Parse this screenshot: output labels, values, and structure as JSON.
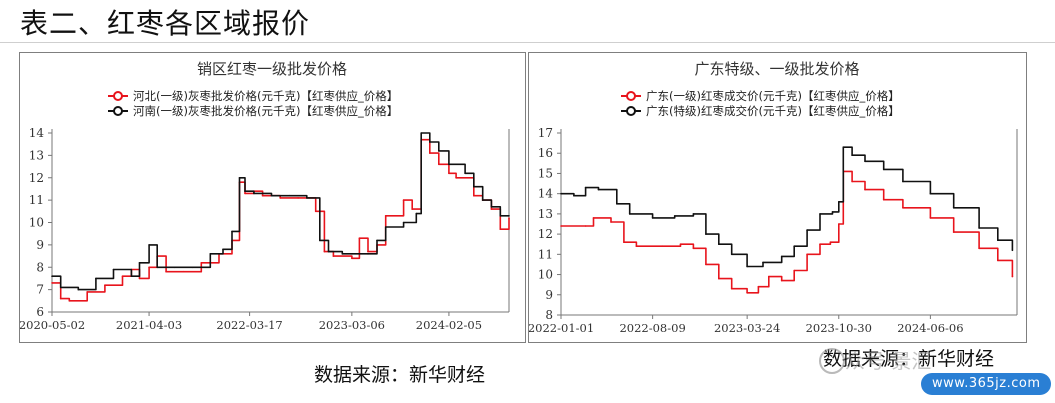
{
  "page": {
    "title": "表二、红枣各区域报价",
    "source_left": "数据来源：新华财经",
    "source_right": "数据来源：新华财经",
    "watermark_text": "众号·景汇",
    "watermark_site": "www.365jz.com"
  },
  "chart_data": [
    {
      "type": "line",
      "title": "销区红枣一级批发价格",
      "ylim": [
        6,
        14
      ],
      "yticks": [
        6,
        7,
        8,
        9,
        10,
        11,
        12,
        13,
        14
      ],
      "x_start": "2020-05-02",
      "x_end": "2024-08-31",
      "xtick_labels": [
        "2020-05-02",
        "2021-04-03",
        "2022-03-17",
        "2023-03-06",
        "2024-02-05"
      ],
      "grid": false,
      "legend_position": "top",
      "series": [
        {
          "name": "河北(一级)灰枣批发价格(元千克)【红枣供应_价格】",
          "color": "#e8141c",
          "points": [
            [
              "2020-05-02",
              7.3
            ],
            [
              "2020-06-01",
              6.6
            ],
            [
              "2020-07-01",
              6.5
            ],
            [
              "2020-09-01",
              6.9
            ],
            [
              "2020-11-01",
              7.2
            ],
            [
              "2021-01-01",
              7.6
            ],
            [
              "2021-02-01",
              7.9
            ],
            [
              "2021-03-01",
              7.5
            ],
            [
              "2021-04-03",
              8.0
            ],
            [
              "2021-05-01",
              8.5
            ],
            [
              "2021-06-01",
              7.8
            ],
            [
              "2021-08-01",
              7.8
            ],
            [
              "2021-10-01",
              8.2
            ],
            [
              "2021-12-01",
              8.6
            ],
            [
              "2022-01-15",
              9.2
            ],
            [
              "2022-02-10",
              11.8
            ],
            [
              "2022-03-01",
              11.3
            ],
            [
              "2022-04-01",
              11.4
            ],
            [
              "2022-05-01",
              11.2
            ],
            [
              "2022-07-01",
              11.1
            ],
            [
              "2022-09-01",
              11.1
            ],
            [
              "2022-11-01",
              10.5
            ],
            [
              "2022-12-01",
              8.7
            ],
            [
              "2023-01-01",
              8.5
            ],
            [
              "2023-03-06",
              8.4
            ],
            [
              "2023-04-01",
              9.3
            ],
            [
              "2023-05-01",
              8.7
            ],
            [
              "2023-06-01",
              9.0
            ],
            [
              "2023-07-01",
              10.3
            ],
            [
              "2023-09-01",
              11.0
            ],
            [
              "2023-10-01",
              10.6
            ],
            [
              "2023-11-01",
              13.7
            ],
            [
              "2023-12-01",
              13.1
            ],
            [
              "2024-01-01",
              12.6
            ],
            [
              "2024-02-05",
              12.2
            ],
            [
              "2024-03-01",
              12.0
            ],
            [
              "2024-05-01",
              11.2
            ],
            [
              "2024-06-01",
              11.0
            ],
            [
              "2024-07-01",
              10.6
            ],
            [
              "2024-08-01",
              9.7
            ],
            [
              "2024-08-31",
              10.2
            ]
          ]
        },
        {
          "name": "河南(一级)灰枣批发价格(元千克)【红枣供应_价格】",
          "color": "#111111",
          "points": [
            [
              "2020-05-02",
              7.6
            ],
            [
              "2020-06-01",
              7.1
            ],
            [
              "2020-08-01",
              7.0
            ],
            [
              "2020-10-01",
              7.5
            ],
            [
              "2020-12-01",
              7.9
            ],
            [
              "2021-02-01",
              7.6
            ],
            [
              "2021-03-01",
              8.2
            ],
            [
              "2021-04-03",
              9.0
            ],
            [
              "2021-05-01",
              8.0
            ],
            [
              "2021-07-01",
              8.0
            ],
            [
              "2021-09-01",
              8.0
            ],
            [
              "2021-11-01",
              8.6
            ],
            [
              "2021-12-15",
              8.8
            ],
            [
              "2022-01-15",
              9.6
            ],
            [
              "2022-02-10",
              12.0
            ],
            [
              "2022-03-01",
              11.4
            ],
            [
              "2022-04-01",
              11.3
            ],
            [
              "2022-06-01",
              11.2
            ],
            [
              "2022-08-01",
              11.2
            ],
            [
              "2022-10-01",
              11.1
            ],
            [
              "2022-11-15",
              9.2
            ],
            [
              "2022-12-15",
              8.7
            ],
            [
              "2023-02-01",
              8.6
            ],
            [
              "2023-03-06",
              8.6
            ],
            [
              "2023-05-01",
              8.6
            ],
            [
              "2023-06-01",
              9.2
            ],
            [
              "2023-07-01",
              9.8
            ],
            [
              "2023-09-01",
              10.0
            ],
            [
              "2023-10-15",
              10.4
            ],
            [
              "2023-11-01",
              14.0
            ],
            [
              "2023-12-01",
              13.6
            ],
            [
              "2024-01-01",
              13.2
            ],
            [
              "2024-02-05",
              12.6
            ],
            [
              "2024-04-01",
              12.2
            ],
            [
              "2024-05-01",
              11.6
            ],
            [
              "2024-06-01",
              11.0
            ],
            [
              "2024-07-01",
              10.7
            ],
            [
              "2024-08-01",
              10.3
            ],
            [
              "2024-08-31",
              10.3
            ]
          ]
        }
      ]
    },
    {
      "type": "line",
      "title": "广东特级、一级批发价格",
      "ylim": [
        8,
        17
      ],
      "yticks": [
        8,
        9,
        10,
        11,
        12,
        13,
        14,
        15,
        16,
        17
      ],
      "x_start": "2022-01-01",
      "x_end": "2024-12-31",
      "xtick_labels": [
        "2022-01-01",
        "2022-08-09",
        "2023-03-24",
        "2023-10-30",
        "2024-06-06"
      ],
      "grid": false,
      "legend_position": "top",
      "series": [
        {
          "name": "广东(一级)红枣成交价(元千克)【红枣供应_价格】",
          "color": "#e8141c",
          "points": [
            [
              "2022-01-01",
              12.4
            ],
            [
              "2022-03-01",
              12.4
            ],
            [
              "2022-03-20",
              12.8
            ],
            [
              "2022-05-01",
              12.6
            ],
            [
              "2022-06-01",
              11.6
            ],
            [
              "2022-07-01",
              11.4
            ],
            [
              "2022-09-01",
              11.4
            ],
            [
              "2022-10-15",
              11.5
            ],
            [
              "2022-11-15",
              11.3
            ],
            [
              "2022-12-15",
              10.5
            ],
            [
              "2023-01-15",
              9.8
            ],
            [
              "2023-02-15",
              9.3
            ],
            [
              "2023-03-24",
              9.1
            ],
            [
              "2023-04-20",
              9.4
            ],
            [
              "2023-05-15",
              9.9
            ],
            [
              "2023-06-15",
              9.7
            ],
            [
              "2023-07-15",
              10.2
            ],
            [
              "2023-08-15",
              11.0
            ],
            [
              "2023-09-15",
              11.5
            ],
            [
              "2023-10-10",
              11.6
            ],
            [
              "2023-10-30",
              12.5
            ],
            [
              "2023-11-10",
              15.1
            ],
            [
              "2023-12-01",
              14.6
            ],
            [
              "2024-01-01",
              14.2
            ],
            [
              "2024-02-15",
              13.7
            ],
            [
              "2024-04-01",
              13.3
            ],
            [
              "2024-06-06",
              12.8
            ],
            [
              "2024-08-01",
              12.1
            ],
            [
              "2024-10-01",
              11.3
            ],
            [
              "2024-11-15",
              10.7
            ],
            [
              "2024-12-20",
              9.9
            ]
          ]
        },
        {
          "name": "广东(特级)红枣成交价(元千克)【红枣供应_价格】",
          "color": "#111111",
          "points": [
            [
              "2022-01-01",
              14.0
            ],
            [
              "2022-02-01",
              13.9
            ],
            [
              "2022-03-01",
              14.3
            ],
            [
              "2022-04-01",
              14.2
            ],
            [
              "2022-05-15",
              13.5
            ],
            [
              "2022-06-15",
              13.0
            ],
            [
              "2022-08-09",
              12.8
            ],
            [
              "2022-10-01",
              12.9
            ],
            [
              "2022-11-15",
              13.0
            ],
            [
              "2022-12-15",
              12.0
            ],
            [
              "2023-01-15",
              11.5
            ],
            [
              "2023-02-15",
              11.0
            ],
            [
              "2023-03-24",
              10.4
            ],
            [
              "2023-05-01",
              10.6
            ],
            [
              "2023-06-15",
              10.9
            ],
            [
              "2023-07-15",
              11.4
            ],
            [
              "2023-08-15",
              12.2
            ],
            [
              "2023-09-15",
              13.0
            ],
            [
              "2023-10-15",
              13.1
            ],
            [
              "2023-10-30",
              13.6
            ],
            [
              "2023-11-10",
              16.3
            ],
            [
              "2023-12-01",
              15.9
            ],
            [
              "2024-01-01",
              15.6
            ],
            [
              "2024-02-15",
              15.2
            ],
            [
              "2024-04-01",
              14.6
            ],
            [
              "2024-06-06",
              14.0
            ],
            [
              "2024-08-01",
              13.3
            ],
            [
              "2024-10-01",
              12.3
            ],
            [
              "2024-11-15",
              11.7
            ],
            [
              "2024-12-20",
              11.2
            ]
          ]
        }
      ]
    }
  ]
}
